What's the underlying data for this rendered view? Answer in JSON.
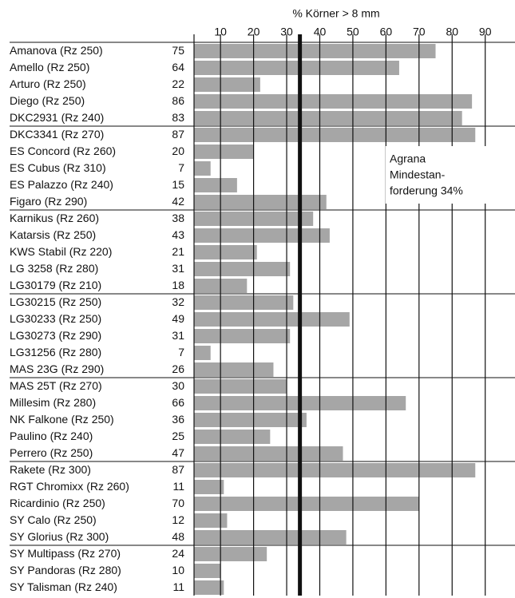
{
  "chart_data": {
    "type": "barh",
    "title": "% Körner > 8 mm",
    "categories": [
      "Amanova (Rz 250)",
      "Amello (Rz 250)",
      "Arturo (Rz 250)",
      "Diego (Rz 250)",
      "DKC2931 (Rz 240)",
      "DKC3341 (Rz 270)",
      "ES Concord (Rz 260)",
      "ES Cubus (Rz 310)",
      "ES Palazzo (Rz 240)",
      "Figaro (Rz 290)",
      "Karnikus (Rz 260)",
      "Katarsis (Rz 250)",
      "KWS Stabil (Rz 220)",
      "LG 3258 (Rz 280)",
      "LG30179 (Rz 210)",
      "LG30215 (Rz 250)",
      "LG30233 (Rz 250)",
      "LG30273 (Rz 290)",
      "LG31256 (Rz 280)",
      "MAS 23G (Rz 290)",
      "MAS 25T (Rz 270)",
      "Millesim (Rz 280)",
      "NK Falkone (Rz 250)",
      "Paulino (Rz 240)",
      "Perrero (Rz 250)",
      "Rakete (Rz 300)",
      "RGT Chromixx (Rz 260)",
      "Ricardinio (Rz 250)",
      "SY Calo (Rz 250)",
      "SY Glorius (Rz 300)",
      "SY Multipass (Rz 270)",
      "SY Pandoras (Rz 280)",
      "SY Talisman (Rz 240)"
    ],
    "values": [
      75,
      64,
      22,
      86,
      83,
      87,
      20,
      7,
      15,
      42,
      38,
      43,
      21,
      31,
      18,
      32,
      49,
      31,
      7,
      26,
      30,
      66,
      36,
      25,
      47,
      87,
      11,
      70,
      12,
      48,
      24,
      10,
      11
    ],
    "color": "#a6a6a6",
    "xlim": [
      2,
      99
    ],
    "xticks": [
      10,
      20,
      30,
      40,
      50,
      60,
      70,
      80,
      90
    ],
    "grid": true,
    "reference_line": 34,
    "annotation": [
      "Agrana",
      "Mindestan-",
      "forderung 34%"
    ]
  }
}
